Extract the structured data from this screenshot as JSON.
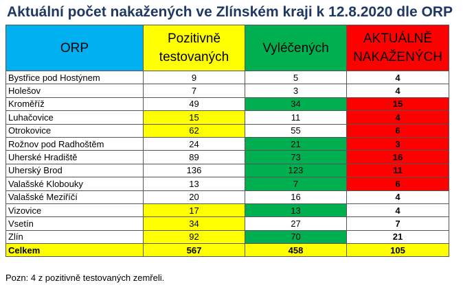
{
  "title": "Aktuální počet nakažených ve Zlínském kraji k 12.8.2020 dle ORP",
  "colors": {
    "title": "#1f3864",
    "header_orp": "#00b0f0",
    "yellow": "#ffff00",
    "green": "#00b050",
    "red": "#ff0000",
    "white": "#ffffff"
  },
  "headers": {
    "orp": "ORP",
    "positive": [
      "Pozitivně",
      "testovaných"
    ],
    "recovered": "Vyléčených",
    "active": [
      "AKTUÁLNĚ",
      "NAKAŽENÝCH"
    ]
  },
  "rows": [
    {
      "name": "Bystřice pod Hostýnem",
      "positive": "9",
      "recovered": "5",
      "active": "4",
      "hl": {
        "name": "white",
        "positive": "white",
        "recovered": "white",
        "active": "white"
      }
    },
    {
      "name": "Holešov",
      "positive": "7",
      "recovered": "3",
      "active": "4",
      "hl": {
        "name": "white",
        "positive": "white",
        "recovered": "white",
        "active": "white"
      }
    },
    {
      "name": "Kroměříž",
      "positive": "49",
      "recovered": "34",
      "active": "15",
      "hl": {
        "name": "white",
        "positive": "white",
        "recovered": "green",
        "active": "red"
      }
    },
    {
      "name": "Luhačovice",
      "positive": "15",
      "recovered": "11",
      "active": "4",
      "hl": {
        "name": "white",
        "positive": "yellow",
        "recovered": "white",
        "active": "red"
      }
    },
    {
      "name": "Otrokovice",
      "positive": "62",
      "recovered": "55",
      "active": "6",
      "hl": {
        "name": "white",
        "positive": "yellow",
        "recovered": "white",
        "active": "red"
      }
    },
    {
      "name": "Rožnov pod Radhoštěm",
      "positive": "24",
      "recovered": "21",
      "active": "3",
      "hl": {
        "name": "white",
        "positive": "white",
        "recovered": "green",
        "active": "red"
      }
    },
    {
      "name": "Uherské Hradiště",
      "positive": "89",
      "recovered": "73",
      "active": "16",
      "hl": {
        "name": "white",
        "positive": "white",
        "recovered": "green",
        "active": "red"
      }
    },
    {
      "name": "Uherský Brod",
      "positive": "136",
      "recovered": "123",
      "active": "11",
      "hl": {
        "name": "white",
        "positive": "white",
        "recovered": "green",
        "active": "red"
      }
    },
    {
      "name": "Valašské Klobouky",
      "positive": "13",
      "recovered": "7",
      "active": "6",
      "hl": {
        "name": "white",
        "positive": "white",
        "recovered": "green",
        "active": "red"
      }
    },
    {
      "name": "Valašské Meziříčí",
      "positive": "20",
      "recovered": "16",
      "active": "4",
      "hl": {
        "name": "white",
        "positive": "white",
        "recovered": "white",
        "active": "white"
      }
    },
    {
      "name": "Vizovice",
      "positive": "17",
      "recovered": "13",
      "active": "4",
      "hl": {
        "name": "white",
        "positive": "yellow",
        "recovered": "green",
        "active": "white"
      }
    },
    {
      "name": "Vsetín",
      "positive": "34",
      "recovered": "27",
      "active": "7",
      "hl": {
        "name": "white",
        "positive": "yellow",
        "recovered": "white",
        "active": "white"
      }
    },
    {
      "name": "Zlín",
      "positive": "92",
      "recovered": "70",
      "active": "21",
      "hl": {
        "name": "white",
        "positive": "yellow",
        "recovered": "green",
        "active": "white"
      }
    }
  ],
  "total": {
    "name": "Celkem",
    "positive": "567",
    "recovered": "458",
    "active": "105"
  },
  "note": "Pozn: 4 z pozitivně testovaných zemřeli."
}
